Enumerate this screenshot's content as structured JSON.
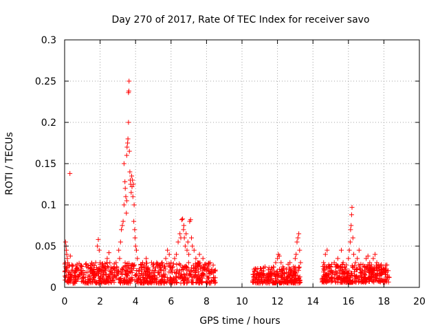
{
  "chart_data": {
    "type": "scatter",
    "title": "Day 270 of 2017, Rate Of TEC Index for receiver savo",
    "xlabel": "GPS time / hours",
    "ylabel": "ROTI / TECUs",
    "xlim": [
      0,
      20
    ],
    "ylim": [
      0,
      0.3
    ],
    "xticks": [
      0,
      2,
      4,
      6,
      8,
      10,
      12,
      14,
      16,
      18,
      20
    ],
    "xtick_labels": [
      "0",
      "2",
      "4",
      "6",
      "8",
      "10",
      "12",
      "14",
      "16",
      "18",
      "20"
    ],
    "yticks": [
      0,
      0.05,
      0.1,
      0.15,
      0.2,
      0.25,
      0.3
    ],
    "ytick_labels": [
      "0",
      "0.05",
      "0.1",
      "0.15",
      "0.2",
      "0.25",
      "0.3"
    ],
    "grid": true,
    "marker": "+",
    "color": "#ff0000",
    "series": [
      {
        "name": "ROTI",
        "points": [
          [
            0.05,
            0.055
          ],
          [
            0.08,
            0.05
          ],
          [
            0.1,
            0.045
          ],
          [
            0.12,
            0.04
          ],
          [
            0.15,
            0.035
          ],
          [
            0.18,
            0.03
          ],
          [
            0.2,
            0.012
          ],
          [
            0.25,
            0.01
          ],
          [
            0.3,
            0.138
          ],
          [
            0.32,
            0.038
          ],
          [
            0.35,
            0.015
          ],
          [
            0.4,
            0.02
          ],
          [
            0.5,
            0.012
          ],
          [
            0.6,
            0.018
          ],
          [
            0.7,
            0.028
          ],
          [
            0.75,
            0.022
          ],
          [
            0.85,
            0.015
          ],
          [
            0.95,
            0.02
          ],
          [
            1.05,
            0.012
          ],
          [
            1.15,
            0.018
          ],
          [
            1.25,
            0.025
          ],
          [
            1.35,
            0.014
          ],
          [
            1.45,
            0.02
          ],
          [
            1.55,
            0.016
          ],
          [
            1.65,
            0.022
          ],
          [
            1.75,
            0.03
          ],
          [
            1.85,
            0.05
          ],
          [
            1.9,
            0.058
          ],
          [
            1.95,
            0.045
          ],
          [
            2.0,
            0.028
          ],
          [
            2.1,
            0.02
          ],
          [
            2.2,
            0.015
          ],
          [
            2.3,
            0.025
          ],
          [
            2.4,
            0.035
          ],
          [
            2.5,
            0.042
          ],
          [
            2.55,
            0.03
          ],
          [
            2.6,
            0.02
          ],
          [
            2.7,
            0.018
          ],
          [
            2.8,
            0.025
          ],
          [
            2.9,
            0.03
          ],
          [
            3.0,
            0.02
          ],
          [
            3.05,
            0.045
          ],
          [
            3.1,
            0.035
          ],
          [
            3.15,
            0.055
          ],
          [
            3.2,
            0.07
          ],
          [
            3.25,
            0.075
          ],
          [
            3.3,
            0.08
          ],
          [
            3.35,
            0.1
          ],
          [
            3.35,
            0.15
          ],
          [
            3.4,
            0.128
          ],
          [
            3.42,
            0.12
          ],
          [
            3.45,
            0.11
          ],
          [
            3.48,
            0.09
          ],
          [
            3.5,
            0.105
          ],
          [
            3.5,
            0.16
          ],
          [
            3.52,
            0.17
          ],
          [
            3.55,
            0.175
          ],
          [
            3.57,
            0.18
          ],
          [
            3.6,
            0.2
          ],
          [
            3.6,
            0.236
          ],
          [
            3.62,
            0.238
          ],
          [
            3.63,
            0.25
          ],
          [
            3.65,
            0.165
          ],
          [
            3.68,
            0.14
          ],
          [
            3.7,
            0.13
          ],
          [
            3.72,
            0.125
          ],
          [
            3.75,
            0.115
          ],
          [
            3.78,
            0.135
          ],
          [
            3.8,
            0.122
          ],
          [
            3.82,
            0.13
          ],
          [
            3.85,
            0.11
          ],
          [
            3.88,
            0.125
          ],
          [
            3.9,
            0.08
          ],
          [
            3.92,
            0.1
          ],
          [
            3.95,
            0.07
          ],
          [
            3.97,
            0.06
          ],
          [
            4.0,
            0.05
          ],
          [
            4.05,
            0.045
          ],
          [
            4.1,
            0.035
          ],
          [
            4.2,
            0.02
          ],
          [
            4.3,
            0.028
          ],
          [
            4.4,
            0.03
          ],
          [
            4.5,
            0.025
          ],
          [
            4.6,
            0.035
          ],
          [
            4.7,
            0.022
          ],
          [
            4.8,
            0.018
          ],
          [
            4.9,
            0.03
          ],
          [
            5.0,
            0.025
          ],
          [
            5.1,
            0.02
          ],
          [
            5.2,
            0.028
          ],
          [
            5.3,
            0.018
          ],
          [
            5.4,
            0.022
          ],
          [
            5.5,
            0.03
          ],
          [
            5.6,
            0.025
          ],
          [
            5.7,
            0.035
          ],
          [
            5.8,
            0.045
          ],
          [
            5.9,
            0.04
          ],
          [
            6.0,
            0.03
          ],
          [
            6.1,
            0.025
          ],
          [
            6.2,
            0.035
          ],
          [
            6.3,
            0.04
          ],
          [
            6.4,
            0.055
          ],
          [
            6.5,
            0.065
          ],
          [
            6.55,
            0.06
          ],
          [
            6.6,
            0.082
          ],
          [
            6.65,
            0.083
          ],
          [
            6.7,
            0.07
          ],
          [
            6.72,
            0.075
          ],
          [
            6.75,
            0.06
          ],
          [
            6.8,
            0.05
          ],
          [
            6.85,
            0.065
          ],
          [
            6.9,
            0.045
          ],
          [
            6.95,
            0.055
          ],
          [
            7.0,
            0.04
          ],
          [
            7.05,
            0.08
          ],
          [
            7.1,
            0.082
          ],
          [
            7.15,
            0.06
          ],
          [
            7.2,
            0.05
          ],
          [
            7.3,
            0.045
          ],
          [
            7.4,
            0.035
          ],
          [
            7.5,
            0.03
          ],
          [
            7.6,
            0.04
          ],
          [
            7.7,
            0.025
          ],
          [
            7.8,
            0.035
          ],
          [
            7.9,
            0.028
          ],
          [
            8.0,
            0.02
          ],
          [
            8.1,
            0.025
          ],
          [
            8.2,
            0.03
          ],
          [
            8.3,
            0.022
          ],
          [
            8.4,
            0.018
          ],
          [
            8.45,
            0.02
          ],
          [
            10.7,
            0.02
          ],
          [
            10.8,
            0.022
          ],
          [
            10.9,
            0.015
          ],
          [
            11.0,
            0.018
          ],
          [
            11.1,
            0.012
          ],
          [
            11.2,
            0.02
          ],
          [
            11.3,
            0.025
          ],
          [
            11.4,
            0.015
          ],
          [
            11.5,
            0.012
          ],
          [
            11.6,
            0.018
          ],
          [
            11.7,
            0.022
          ],
          [
            11.8,
            0.02
          ],
          [
            11.9,
            0.03
          ],
          [
            12.0,
            0.035
          ],
          [
            12.05,
            0.04
          ],
          [
            12.1,
            0.038
          ],
          [
            12.2,
            0.03
          ],
          [
            12.3,
            0.025
          ],
          [
            12.4,
            0.018
          ],
          [
            12.5,
            0.022
          ],
          [
            12.6,
            0.028
          ],
          [
            12.7,
            0.03
          ],
          [
            12.8,
            0.02
          ],
          [
            12.9,
            0.025
          ],
          [
            13.0,
            0.035
          ],
          [
            13.05,
            0.04
          ],
          [
            13.1,
            0.055
          ],
          [
            13.15,
            0.06
          ],
          [
            13.2,
            0.065
          ],
          [
            13.25,
            0.045
          ],
          [
            13.3,
            0.03
          ],
          [
            14.6,
            0.03
          ],
          [
            14.7,
            0.04
          ],
          [
            14.8,
            0.045
          ],
          [
            14.9,
            0.025
          ],
          [
            15.0,
            0.02
          ],
          [
            15.1,
            0.018
          ],
          [
            15.2,
            0.03
          ],
          [
            15.3,
            0.025
          ],
          [
            15.4,
            0.035
          ],
          [
            15.5,
            0.02
          ],
          [
            15.6,
            0.045
          ],
          [
            15.7,
            0.03
          ],
          [
            15.8,
            0.025
          ],
          [
            15.9,
            0.02
          ],
          [
            16.0,
            0.035
          ],
          [
            16.05,
            0.045
          ],
          [
            16.1,
            0.055
          ],
          [
            16.12,
            0.07
          ],
          [
            16.15,
            0.075
          ],
          [
            16.18,
            0.088
          ],
          [
            16.2,
            0.097
          ],
          [
            16.25,
            0.06
          ],
          [
            16.3,
            0.04
          ],
          [
            16.4,
            0.03
          ],
          [
            16.5,
            0.035
          ],
          [
            16.6,
            0.045
          ],
          [
            16.7,
            0.028
          ],
          [
            16.8,
            0.02
          ],
          [
            16.9,
            0.025
          ],
          [
            17.0,
            0.035
          ],
          [
            17.1,
            0.038
          ],
          [
            17.2,
            0.03
          ],
          [
            17.3,
            0.025
          ],
          [
            17.4,
            0.035
          ],
          [
            17.5,
            0.04
          ],
          [
            17.6,
            0.03
          ],
          [
            17.7,
            0.025
          ],
          [
            17.8,
            0.02
          ],
          [
            17.9,
            0.018
          ],
          [
            18.0,
            0.022
          ],
          [
            18.1,
            0.018
          ],
          [
            18.2,
            0.015
          ],
          [
            18.3,
            0.012
          ]
        ],
        "dense_bands": [
          {
            "x_from": 0.0,
            "x_to": 8.5,
            "y_min": 0.005,
            "y_max": 0.03,
            "n": 700
          },
          {
            "x_from": 10.6,
            "x_to": 13.3,
            "y_min": 0.005,
            "y_max": 0.025,
            "n": 260
          },
          {
            "x_from": 14.5,
            "x_to": 18.3,
            "y_min": 0.006,
            "y_max": 0.028,
            "n": 360
          }
        ]
      }
    ]
  }
}
